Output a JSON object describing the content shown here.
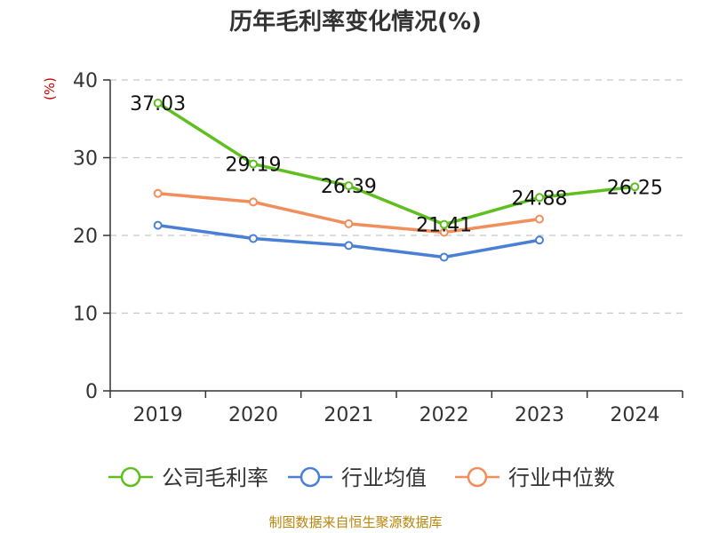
{
  "chart_data": {
    "type": "line",
    "title": "历年毛利率变化情况(%)",
    "ylabel": "(%)",
    "xlabel": "",
    "categories": [
      "2019",
      "2020",
      "2021",
      "2022",
      "2023",
      "2024"
    ],
    "ylim": [
      0,
      40
    ],
    "yticks": [
      0,
      10,
      20,
      30,
      40
    ],
    "grid": true,
    "legend_position": "bottom",
    "series": [
      {
        "name": "公司毛利率",
        "color": "#5fbf1f",
        "values": [
          37.03,
          29.19,
          26.39,
          21.41,
          24.88,
          26.25
        ],
        "labels": [
          "37.03",
          "29.19",
          "26.39",
          "21.41",
          "24.88",
          "26.25"
        ]
      },
      {
        "name": "行业均值",
        "color": "#4a7fd6",
        "values": [
          21.3,
          19.6,
          18.7,
          17.2,
          19.4,
          null
        ]
      },
      {
        "name": "行业中位数",
        "color": "#f28e5b",
        "values": [
          25.4,
          24.3,
          21.5,
          20.4,
          22.1,
          null
        ]
      }
    ]
  },
  "footer": {
    "source": "制图数据来自恒生聚源数据库"
  }
}
